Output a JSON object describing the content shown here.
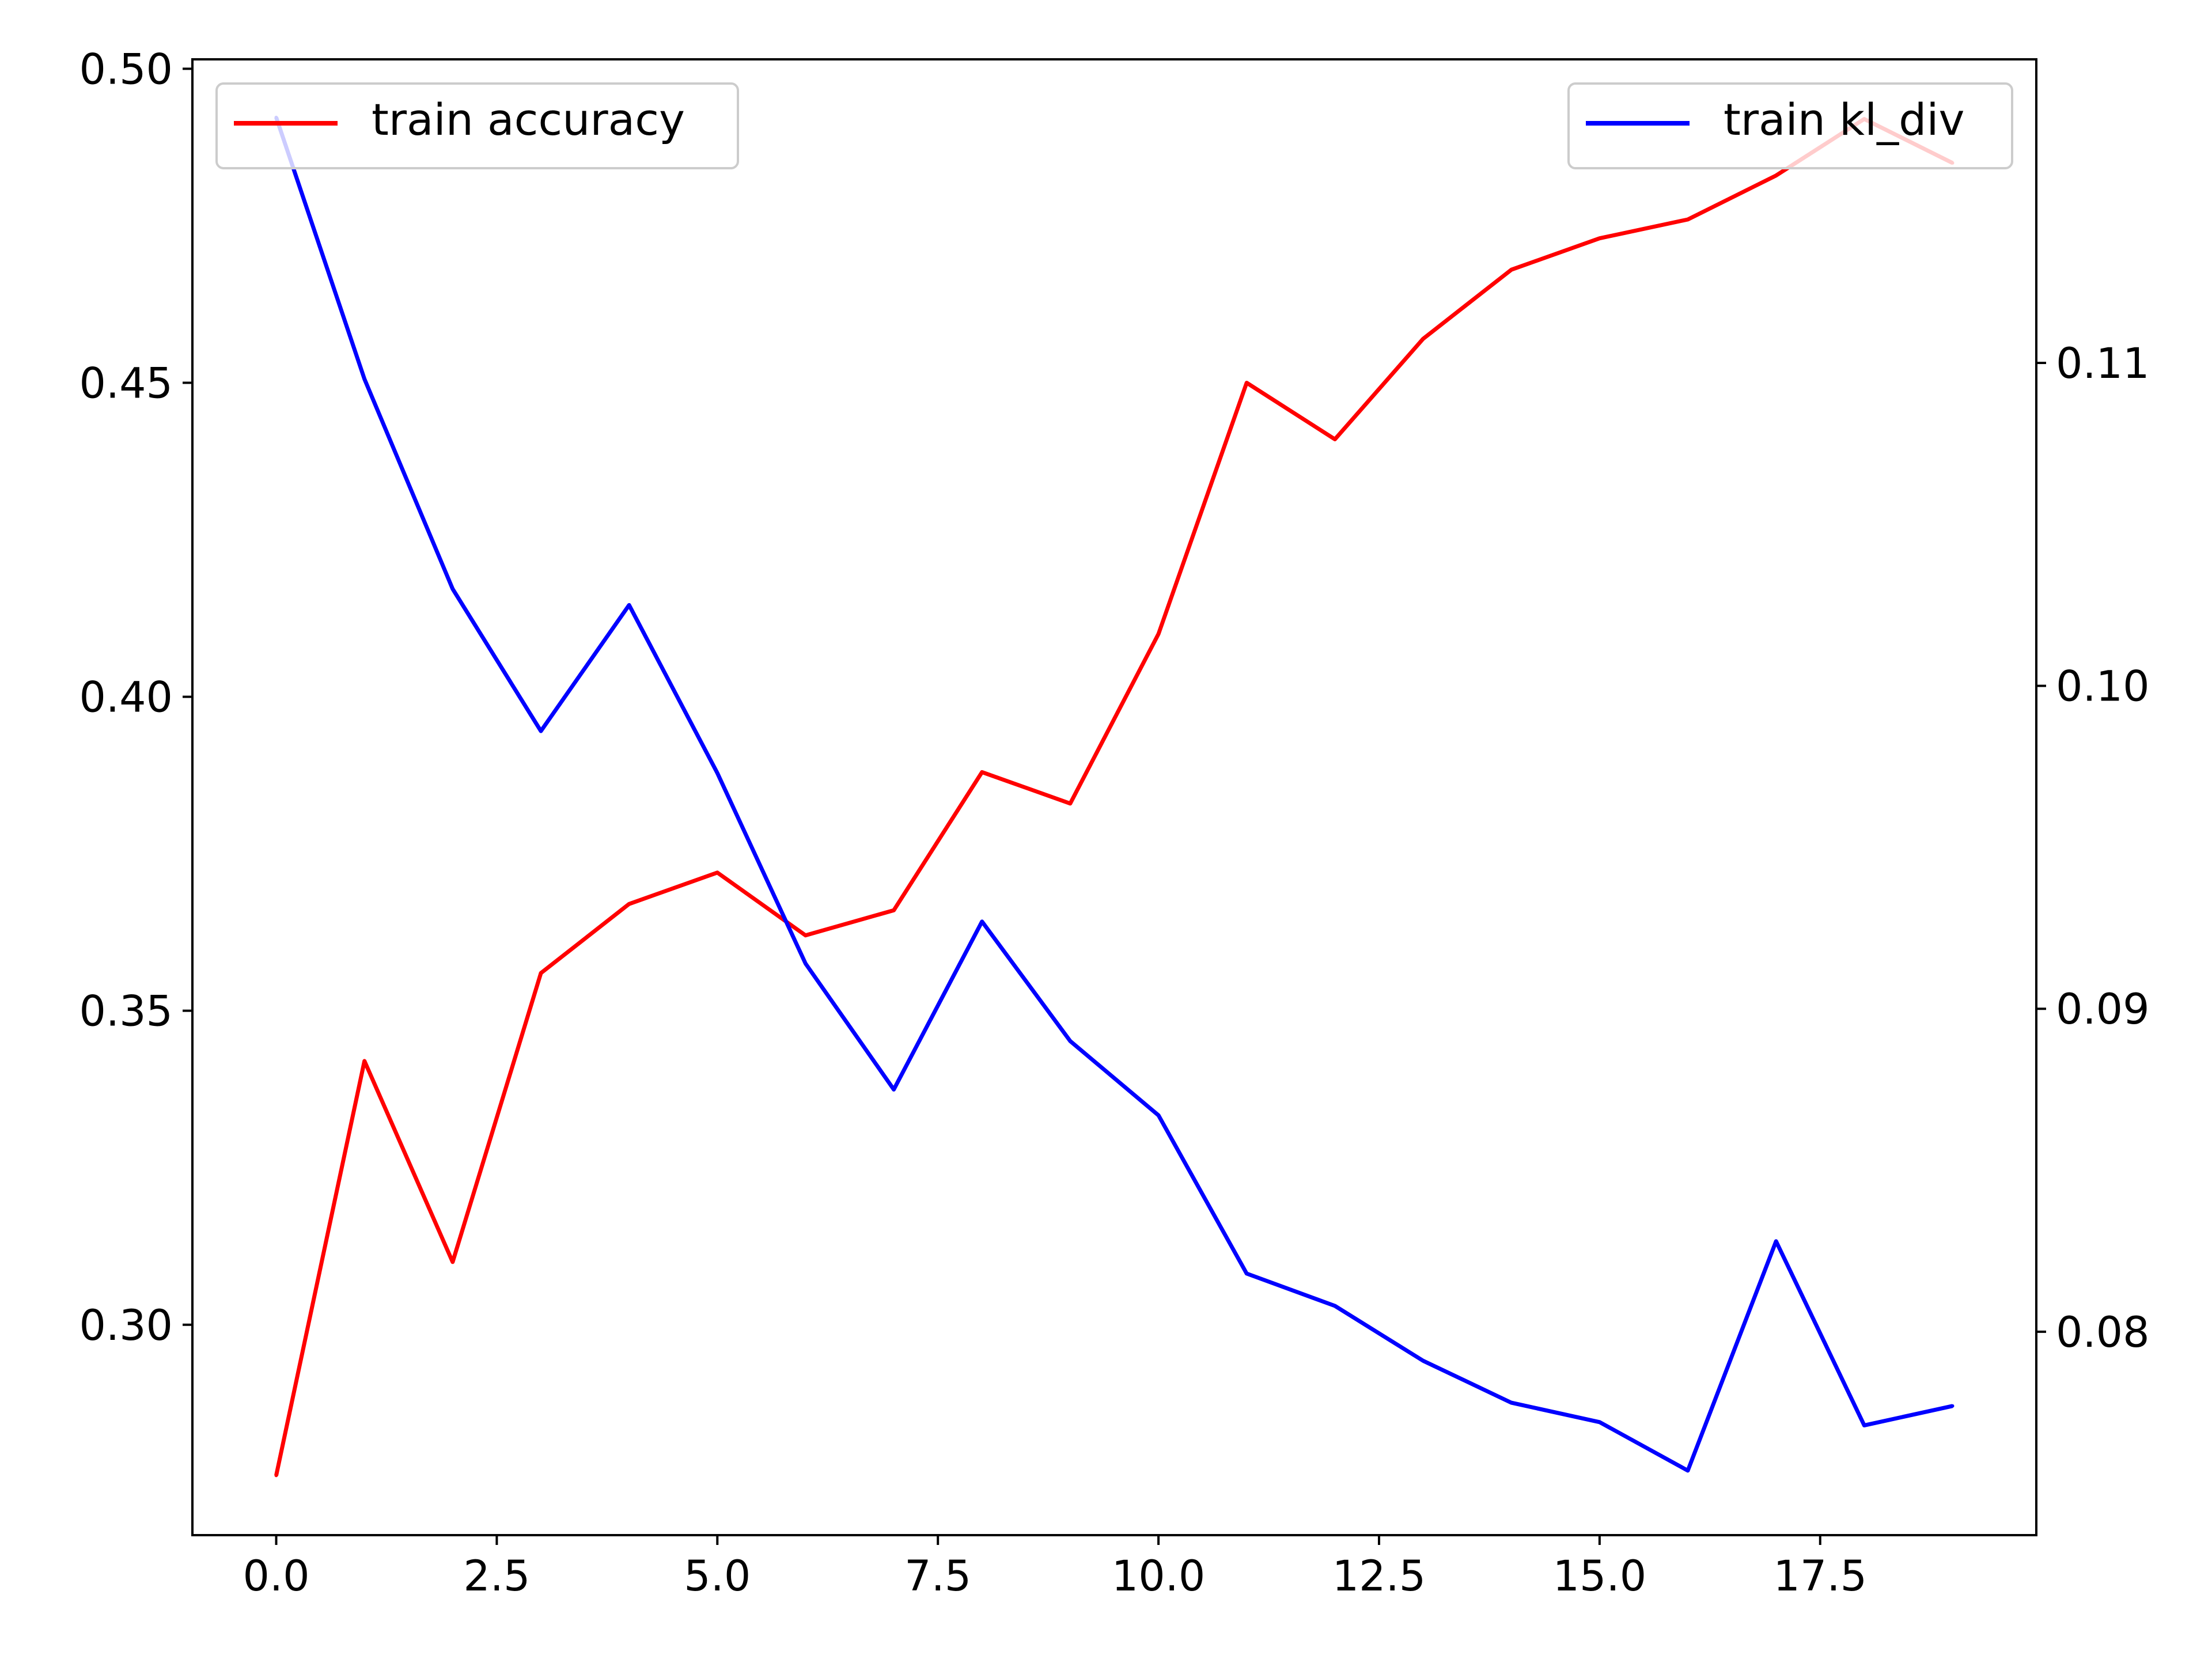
{
  "chart_data": {
    "type": "line",
    "x": [
      0,
      1,
      2,
      3,
      4,
      5,
      6,
      7,
      8,
      9,
      10,
      11,
      12,
      13,
      14,
      15,
      16,
      17,
      18,
      19
    ],
    "series": [
      {
        "name": "train accuracy",
        "axis": "left",
        "color": "#ff0000",
        "values": [
          0.276,
          0.342,
          0.31,
          0.356,
          0.367,
          0.372,
          0.362,
          0.366,
          0.388,
          0.383,
          0.41,
          0.45,
          0.441,
          0.457,
          0.468,
          0.473,
          0.476,
          0.483,
          0.492,
          0.485
        ]
      },
      {
        "name": "train kl_div",
        "axis": "right",
        "color": "#0000ff",
        "values": [
          0.1176,
          0.1095,
          0.103,
          0.0986,
          0.1025,
          0.0973,
          0.0914,
          0.0875,
          0.0927,
          0.089,
          0.0867,
          0.0818,
          0.0808,
          0.0791,
          0.0778,
          0.0772,
          0.0757,
          0.0828,
          0.0771,
          0.0777
        ]
      }
    ],
    "xlim": [
      -0.95,
      19.95
    ],
    "ylim_left": [
      0.2665,
      0.5015
    ],
    "ylim_right": [
      0.0737,
      0.1194
    ],
    "xticks": [
      "0.0",
      "2.5",
      "5.0",
      "7.5",
      "10.0",
      "12.5",
      "15.0",
      "17.5"
    ],
    "yticks_left": [
      "0.30",
      "0.35",
      "0.40",
      "0.45",
      "0.50"
    ],
    "yticks_right": [
      "0.08",
      "0.09",
      "0.10",
      "0.11"
    ],
    "legend_left": "top-left",
    "legend_right": "top-right",
    "grid": false
  }
}
